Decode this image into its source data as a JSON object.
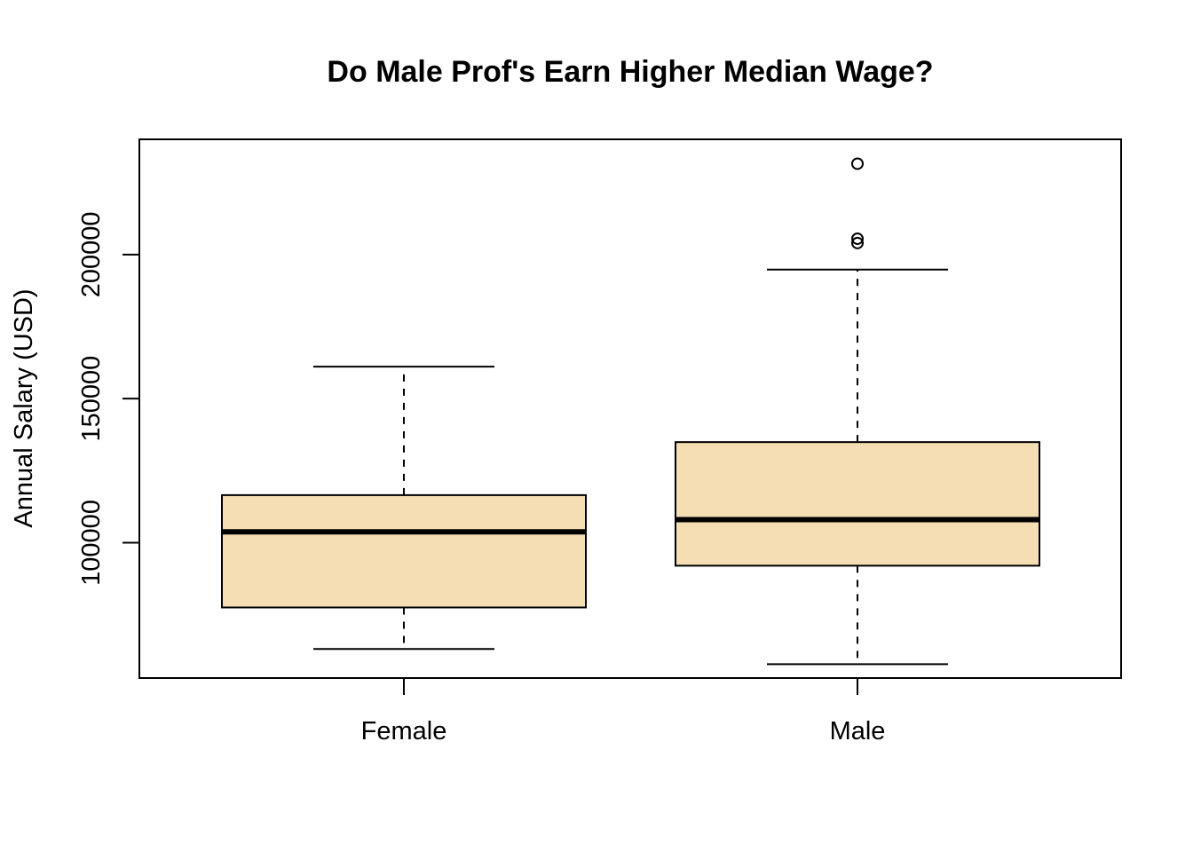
{
  "chart_data": {
    "type": "boxplot",
    "title": "Do Male Prof's Earn Higher Median Wage?",
    "xlabel": "",
    "ylabel": "Annual Salary (USD)",
    "ylim": [
      53000,
      240000
    ],
    "y_ticks": [
      100000,
      150000,
      200000
    ],
    "y_tick_labels": [
      "100000",
      "150000",
      "200000"
    ],
    "categories": [
      "Female",
      "Male"
    ],
    "box_fill": "#F5DEB3",
    "line_color": "#000000",
    "grid": false,
    "series": [
      {
        "category": "Female",
        "whisker_low": 63100,
        "q1": 77500,
        "median": 103750,
        "q3": 116500,
        "whisker_high": 161100,
        "outliers": []
      },
      {
        "category": "Male",
        "whisker_low": 57800,
        "q1": 92000,
        "median": 108000,
        "q3": 134900,
        "whisker_high": 194800,
        "outliers": [
          231545,
          204000,
          205500
        ]
      }
    ]
  }
}
